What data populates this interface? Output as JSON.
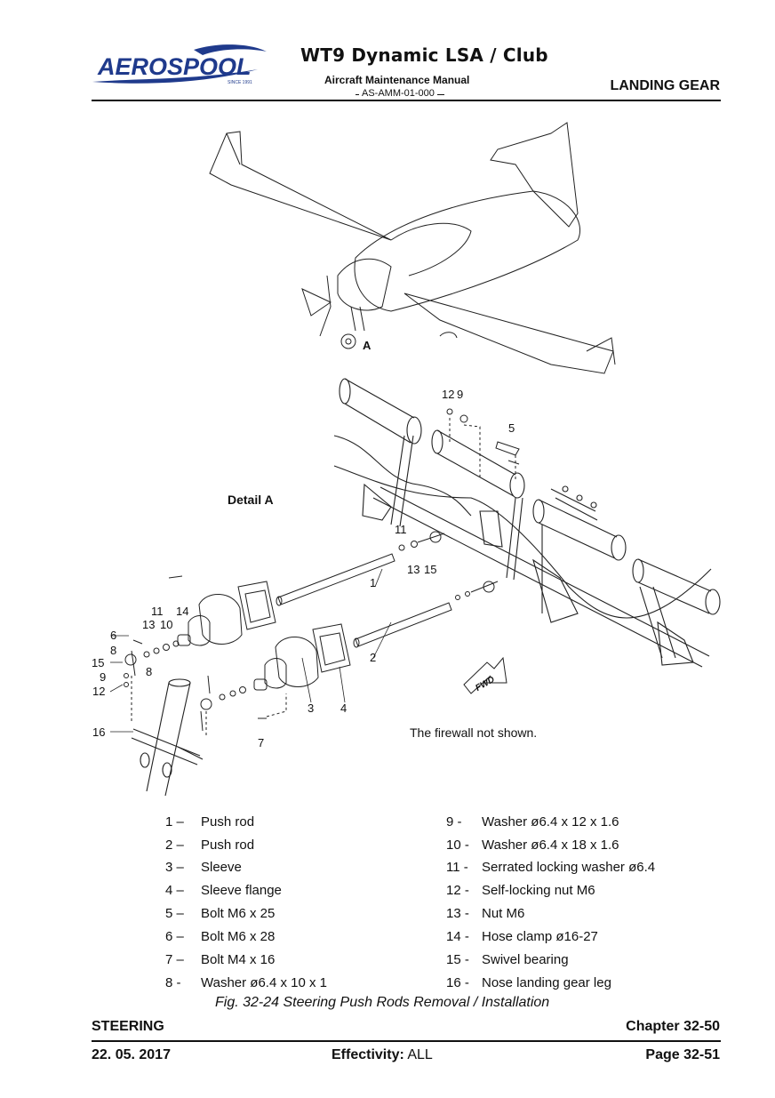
{
  "header": {
    "logo_text": "AEROSPOOL",
    "logo_tagline": "SINCE 1991",
    "title": "WT9 Dynamic LSA / Club",
    "subtitle": "Aircraft Maintenance Manual",
    "doc_code": "AS-AMM-01-000",
    "chapter_name": "LANDING GEAR"
  },
  "figure": {
    "view_label": "A",
    "detail_label": "Detail A",
    "firewall_note": "The firewall not shown.",
    "fwd_label": "FWD",
    "callouts": [
      "12",
      "9",
      "5",
      "11",
      "13",
      "15",
      "1",
      "2",
      "3",
      "4",
      "6",
      "8",
      "13",
      "10",
      "11",
      "14",
      "15",
      "8",
      "9",
      "12",
      "16",
      "7"
    ]
  },
  "legend": {
    "left": [
      {
        "num": "1 –",
        "text": "Push rod"
      },
      {
        "num": "2 –",
        "text": "Push rod"
      },
      {
        "num": "3 –",
        "text": "Sleeve"
      },
      {
        "num": "4 –",
        "text": "Sleeve flange"
      },
      {
        "num": "5 –",
        "text": "Bolt M6 x 25"
      },
      {
        "num": "6 –",
        "text": "Bolt M6 x 28"
      },
      {
        "num": "7 –",
        "text": "Bolt M4 x 16"
      },
      {
        "num": "8 -",
        "text": "Washer ø6.4 x 10 x 1"
      }
    ],
    "right": [
      {
        "num": "9 -",
        "text": "Washer ø6.4 x 12 x 1.6"
      },
      {
        "num": "10 -",
        "text": "Washer ø6.4 x 18 x 1.6"
      },
      {
        "num": "11 -",
        "text": "Serrated locking washer ø6.4"
      },
      {
        "num": "12 -",
        "text": "Self-locking nut M6"
      },
      {
        "num": "13 -",
        "text": "Nut M6"
      },
      {
        "num": "14 -",
        "text": "Hose clamp ø16-27"
      },
      {
        "num": "15 -",
        "text": "Swivel bearing"
      },
      {
        "num": "16 -",
        "text": "Nose landing gear leg"
      }
    ]
  },
  "caption": "Fig.  32-24   Steering Push Rods Removal / Installation",
  "footer": {
    "section": "STEERING",
    "chapter": "Chapter 32-50",
    "date": "22. 05. 2017",
    "effectivity_label": "Effectivity:",
    "effectivity_value": "ALL",
    "page": "Page 32-51"
  },
  "colors": {
    "logo_blue": "#1f3a8c",
    "text": "#111111"
  }
}
